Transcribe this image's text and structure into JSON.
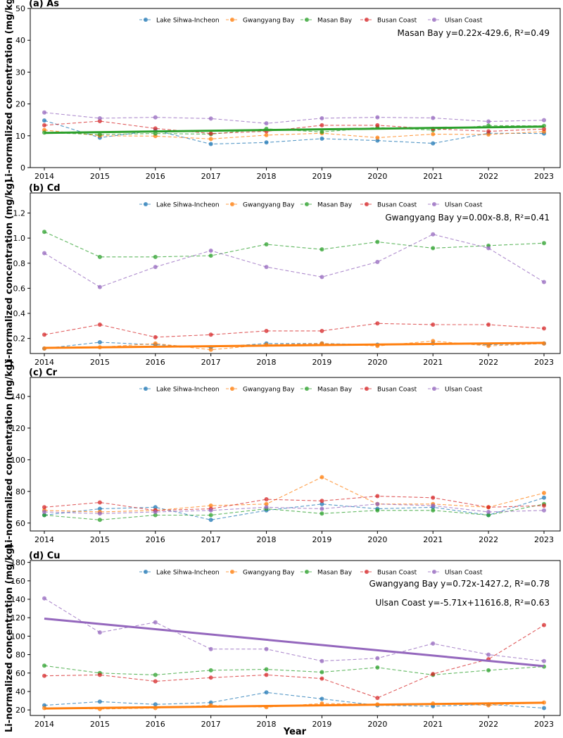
{
  "figure": {
    "ylabel": "Li-normalized concentration (mg/kg)",
    "xlabel": "Year"
  },
  "colors": {
    "Lake Sihwa-Incheon": "#1f77b4",
    "Gwangyang Bay": "#ff7f0e",
    "Masan Bay": "#2ca02c",
    "Busan Coast": "#d62728",
    "Ulsan Coast": "#9467bd"
  },
  "chart_data": [
    {
      "type": "line",
      "title": "(a) As",
      "x": [
        2014,
        2015,
        2016,
        2017,
        2018,
        2019,
        2020,
        2021,
        2022,
        2023
      ],
      "ylim": [
        0,
        50
      ],
      "yticks": [
        0,
        10,
        20,
        30,
        40,
        50
      ],
      "series": [
        {
          "name": "Lake Sihwa-Incheon",
          "values": [
            14.8,
            9.4,
            11.7,
            7.4,
            7.9,
            9.1,
            8.5,
            7.6,
            10.8,
            10.7
          ]
        },
        {
          "name": "Gwangyang Bay",
          "values": [
            11.8,
            10.0,
            9.9,
            9.0,
            10.2,
            10.8,
            9.4,
            10.5,
            10.4,
            11.3
          ]
        },
        {
          "name": "Masan Bay",
          "values": [
            11.0,
            10.4,
            10.7,
            10.5,
            12.2,
            11.2,
            12.6,
            11.8,
            13.2,
            13.1
          ]
        },
        {
          "name": "Busan Coast",
          "values": [
            13.3,
            14.6,
            12.3,
            10.7,
            11.4,
            13.3,
            13.3,
            12.2,
            11.4,
            12.1
          ]
        },
        {
          "name": "Ulsan Coast",
          "values": [
            17.3,
            15.5,
            15.8,
            15.4,
            13.9,
            15.5,
            15.8,
            15.6,
            14.5,
            14.9
          ]
        }
      ],
      "trends": [
        {
          "series": "Masan Bay",
          "y_start": 10.9,
          "y_end": 12.9,
          "label": "Masan Bay y=0.22x-429.6, R²=0.49"
        }
      ],
      "legend": "top-center",
      "grid": false
    },
    {
      "type": "line",
      "title": "(b) Cd",
      "x": [
        2014,
        2015,
        2016,
        2017,
        2018,
        2019,
        2020,
        2021,
        2022,
        2023
      ],
      "ylim": [
        0.08,
        1.36
      ],
      "yticks": [
        0.2,
        0.4,
        0.6,
        0.8,
        1.0,
        1.2
      ],
      "yticklabels": [
        "0.2",
        "0.4",
        "0.6",
        "0.8",
        "1.0",
        "1.2"
      ],
      "series": [
        {
          "name": "Lake Sihwa-Incheon",
          "values": [
            0.12,
            0.17,
            0.15,
            0.13,
            0.16,
            0.16,
            0.15,
            0.16,
            0.15,
            0.16
          ]
        },
        {
          "name": "Gwangyang Bay",
          "values": [
            0.12,
            0.13,
            0.16,
            0.11,
            0.15,
            0.16,
            0.14,
            0.18,
            0.14,
            0.16
          ]
        },
        {
          "name": "Masan Bay",
          "values": [
            1.05,
            0.85,
            0.85,
            0.86,
            0.95,
            0.91,
            0.97,
            0.92,
            0.94,
            0.96
          ]
        },
        {
          "name": "Busan Coast",
          "values": [
            0.23,
            0.31,
            0.21,
            0.23,
            0.26,
            0.26,
            0.32,
            0.31,
            0.31,
            0.28
          ]
        },
        {
          "name": "Ulsan Coast",
          "values": [
            0.88,
            0.61,
            0.77,
            0.9,
            0.77,
            0.69,
            0.81,
            1.03,
            0.92,
            0.65
          ]
        }
      ],
      "trends": [
        {
          "series": "Gwangyang Bay",
          "y_start": 0.125,
          "y_end": 0.165,
          "label": "Gwangyang Bay y=0.00x-8.8, R²=0.41"
        }
      ],
      "legend": "top-center",
      "grid": false
    },
    {
      "type": "line",
      "title": "(c) Cr",
      "x": [
        2014,
        2015,
        2016,
        2017,
        2018,
        2019,
        2020,
        2021,
        2022,
        2023
      ],
      "ylim": [
        55,
        152
      ],
      "yticks": [
        60,
        80,
        100,
        120,
        140
      ],
      "series": [
        {
          "name": "Lake Sihwa-Incheon",
          "values": [
            65,
            69,
            70,
            62,
            68,
            72,
            69,
            70,
            65,
            76
          ]
        },
        {
          "name": "Gwangyang Bay",
          "values": [
            68,
            67,
            68,
            71,
            72,
            89,
            72,
            72,
            70,
            79
          ]
        },
        {
          "name": "Masan Bay",
          "values": [
            65,
            62,
            65,
            65,
            69,
            66,
            68,
            68,
            65,
            72
          ]
        },
        {
          "name": "Busan Coast",
          "values": [
            70,
            73,
            68,
            69,
            75,
            74,
            77,
            76,
            70,
            71
          ]
        },
        {
          "name": "Ulsan Coast",
          "values": [
            67,
            66,
            67,
            68,
            70,
            69,
            72,
            71,
            67,
            68
          ]
        }
      ],
      "trends": [],
      "legend": "top-center",
      "grid": false
    },
    {
      "type": "line",
      "title": "(d) Cu",
      "x": [
        2014,
        2015,
        2016,
        2017,
        2018,
        2019,
        2020,
        2021,
        2022,
        2023
      ],
      "ylim": [
        14,
        182
      ],
      "yticks": [
        20,
        40,
        60,
        80,
        100,
        120,
        140,
        160,
        180
      ],
      "series": [
        {
          "name": "Lake Sihwa-Incheon",
          "values": [
            25,
            29,
            26,
            28,
            39,
            32,
            25,
            24,
            26,
            22
          ]
        },
        {
          "name": "Gwangyang Bay",
          "values": [
            22,
            21,
            22,
            25,
            23,
            27,
            26,
            27,
            25,
            28
          ]
        },
        {
          "name": "Masan Bay",
          "values": [
            68,
            60,
            58,
            63,
            64,
            61,
            66,
            58,
            63,
            67
          ]
        },
        {
          "name": "Busan Coast",
          "values": [
            57,
            58,
            51,
            55,
            58,
            54,
            33,
            59,
            75,
            112
          ]
        },
        {
          "name": "Ulsan Coast",
          "values": [
            141,
            104,
            115,
            86,
            86,
            73,
            76,
            92,
            80,
            73
          ]
        }
      ],
      "trends": [
        {
          "series": "Ulsan Coast",
          "y_start": 119,
          "y_end": 67.5,
          "label": "Ulsan Coast y=-5.71x+11616.8, R²=0.63"
        },
        {
          "series": "Gwangyang Bay",
          "y_start": 21.5,
          "y_end": 27.8,
          "label": "Gwangyang Bay y=0.72x-1427.2, R²=0.78"
        }
      ],
      "legend": "top-center",
      "grid": false
    }
  ]
}
